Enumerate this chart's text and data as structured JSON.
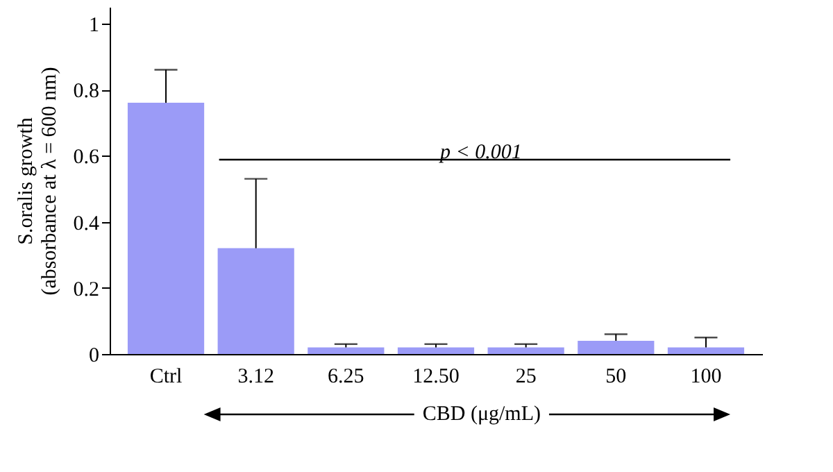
{
  "chart_data": {
    "type": "bar",
    "xlabel": "CBD (μg/mL)",
    "ylabel": "S.oralis growth (absorbance at λ = 600 nm)",
    "categories": [
      "Ctrl",
      "3.12",
      "6.25",
      "12.50",
      "25",
      "50",
      "100"
    ],
    "series": [
      {
        "color": "#9b9bf7",
        "values": [
          0.76,
          0.32,
          0.02,
          0.02,
          0.02,
          0.04,
          0.02
        ],
        "errors": [
          [
            0.76,
            0.86
          ],
          [
            0.32,
            0.53
          ],
          [
            0.02,
            0.03
          ],
          [
            0.02,
            0.03
          ],
          [
            0.02,
            0.03
          ],
          [
            0.04,
            0.06
          ],
          [
            0.02,
            0.05
          ]
        ]
      }
    ],
    "ylim": [
      0,
      1.05
    ],
    "yticks": [
      0,
      0.2,
      0.4,
      0.6,
      0.8,
      1
    ],
    "grid": false,
    "legend": false,
    "annotations": [
      "p < 0.001"
    ]
  }
}
